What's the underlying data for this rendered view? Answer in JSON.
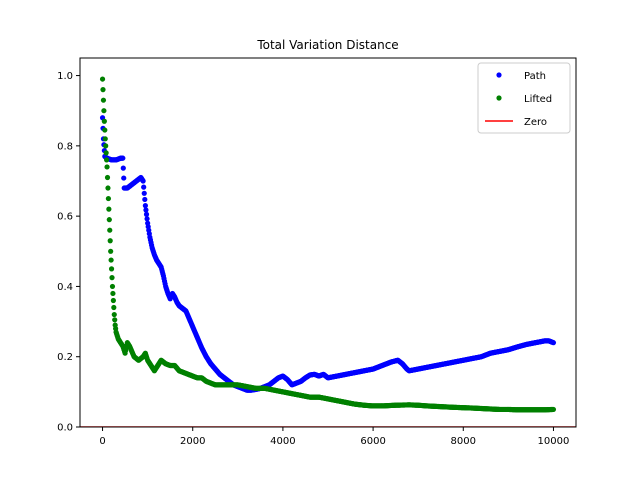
{
  "chart_data": {
    "type": "scatter",
    "title": "Total Variation Distance",
    "xlabel": "",
    "ylabel": "",
    "xlim": [
      -500,
      10500
    ],
    "ylim": [
      0.0,
      1.05
    ],
    "xticks": [
      0,
      2000,
      4000,
      6000,
      8000,
      10000
    ],
    "yticks": [
      0.0,
      0.2,
      0.4,
      0.6,
      0.8,
      1.0
    ],
    "xtick_labels": [
      "0",
      "2000",
      "4000",
      "6000",
      "8000",
      "10000"
    ],
    "ytick_labels": [
      "0.0",
      "0.2",
      "0.4",
      "0.6",
      "0.8",
      "1.0"
    ],
    "grid": false,
    "legend_position": "top-right",
    "series": [
      {
        "name": "Path",
        "kind": "markers",
        "color": "#0000ff",
        "points": [
          [
            0,
            0.88
          ],
          [
            20,
            0.82
          ],
          [
            50,
            0.77
          ],
          [
            100,
            0.765
          ],
          [
            200,
            0.76
          ],
          [
            300,
            0.76
          ],
          [
            400,
            0.765
          ],
          [
            450,
            0.765
          ],
          [
            480,
            0.68
          ],
          [
            550,
            0.68
          ],
          [
            650,
            0.69
          ],
          [
            750,
            0.7
          ],
          [
            850,
            0.71
          ],
          [
            900,
            0.7
          ],
          [
            950,
            0.63
          ],
          [
            1000,
            0.58
          ],
          [
            1050,
            0.54
          ],
          [
            1100,
            0.51
          ],
          [
            1150,
            0.49
          ],
          [
            1200,
            0.475
          ],
          [
            1250,
            0.465
          ],
          [
            1300,
            0.455
          ],
          [
            1350,
            0.43
          ],
          [
            1400,
            0.4
          ],
          [
            1450,
            0.38
          ],
          [
            1500,
            0.365
          ],
          [
            1550,
            0.38
          ],
          [
            1600,
            0.37
          ],
          [
            1650,
            0.355
          ],
          [
            1700,
            0.345
          ],
          [
            1800,
            0.335
          ],
          [
            1850,
            0.33
          ],
          [
            1900,
            0.315
          ],
          [
            2000,
            0.285
          ],
          [
            2100,
            0.255
          ],
          [
            2200,
            0.225
          ],
          [
            2300,
            0.2
          ],
          [
            2400,
            0.18
          ],
          [
            2500,
            0.165
          ],
          [
            2600,
            0.15
          ],
          [
            2700,
            0.14
          ],
          [
            2800,
            0.13
          ],
          [
            2900,
            0.12
          ],
          [
            3000,
            0.115
          ],
          [
            3100,
            0.11
          ],
          [
            3200,
            0.105
          ],
          [
            3300,
            0.105
          ],
          [
            3400,
            0.107
          ],
          [
            3500,
            0.11
          ],
          [
            3600,
            0.115
          ],
          [
            3700,
            0.12
          ],
          [
            3800,
            0.13
          ],
          [
            3900,
            0.14
          ],
          [
            4000,
            0.145
          ],
          [
            4100,
            0.135
          ],
          [
            4200,
            0.12
          ],
          [
            4300,
            0.125
          ],
          [
            4400,
            0.13
          ],
          [
            4500,
            0.14
          ],
          [
            4600,
            0.148
          ],
          [
            4700,
            0.15
          ],
          [
            4800,
            0.145
          ],
          [
            4900,
            0.15
          ],
          [
            5000,
            0.14
          ],
          [
            5200,
            0.145
          ],
          [
            5400,
            0.15
          ],
          [
            5600,
            0.155
          ],
          [
            5800,
            0.16
          ],
          [
            6000,
            0.165
          ],
          [
            6200,
            0.175
          ],
          [
            6400,
            0.185
          ],
          [
            6550,
            0.19
          ],
          [
            6650,
            0.18
          ],
          [
            6750,
            0.165
          ],
          [
            6800,
            0.16
          ],
          [
            7000,
            0.165
          ],
          [
            7200,
            0.17
          ],
          [
            7400,
            0.175
          ],
          [
            7600,
            0.18
          ],
          [
            7800,
            0.185
          ],
          [
            8000,
            0.19
          ],
          [
            8200,
            0.195
          ],
          [
            8400,
            0.2
          ],
          [
            8600,
            0.21
          ],
          [
            8800,
            0.215
          ],
          [
            9000,
            0.22
          ],
          [
            9200,
            0.228
          ],
          [
            9400,
            0.235
          ],
          [
            9600,
            0.24
          ],
          [
            9800,
            0.245
          ],
          [
            9900,
            0.245
          ],
          [
            10000,
            0.24
          ]
        ]
      },
      {
        "name": "Lifted",
        "kind": "markers",
        "color": "#008000",
        "points": [
          [
            0,
            0.99
          ],
          [
            20,
            0.93
          ],
          [
            40,
            0.87
          ],
          [
            60,
            0.82
          ],
          [
            80,
            0.78
          ],
          [
            100,
            0.74
          ],
          [
            120,
            0.68
          ],
          [
            140,
            0.62
          ],
          [
            160,
            0.56
          ],
          [
            180,
            0.5
          ],
          [
            200,
            0.45
          ],
          [
            220,
            0.4
          ],
          [
            240,
            0.36
          ],
          [
            260,
            0.32
          ],
          [
            280,
            0.29
          ],
          [
            300,
            0.27
          ],
          [
            350,
            0.25
          ],
          [
            400,
            0.24
          ],
          [
            450,
            0.23
          ],
          [
            500,
            0.21
          ],
          [
            550,
            0.24
          ],
          [
            600,
            0.23
          ],
          [
            700,
            0.2
          ],
          [
            800,
            0.19
          ],
          [
            900,
            0.2
          ],
          [
            950,
            0.21
          ],
          [
            1000,
            0.19
          ],
          [
            1100,
            0.17
          ],
          [
            1150,
            0.16
          ],
          [
            1200,
            0.17
          ],
          [
            1300,
            0.19
          ],
          [
            1400,
            0.18
          ],
          [
            1500,
            0.175
          ],
          [
            1600,
            0.175
          ],
          [
            1700,
            0.16
          ],
          [
            1800,
            0.155
          ],
          [
            1900,
            0.15
          ],
          [
            2000,
            0.145
          ],
          [
            2100,
            0.14
          ],
          [
            2200,
            0.14
          ],
          [
            2300,
            0.13
          ],
          [
            2400,
            0.125
          ],
          [
            2500,
            0.12
          ],
          [
            2600,
            0.12
          ],
          [
            2800,
            0.12
          ],
          [
            3000,
            0.12
          ],
          [
            3200,
            0.115
          ],
          [
            3400,
            0.11
          ],
          [
            3600,
            0.11
          ],
          [
            3800,
            0.105
          ],
          [
            4000,
            0.1
          ],
          [
            4200,
            0.095
          ],
          [
            4400,
            0.09
          ],
          [
            4600,
            0.085
          ],
          [
            4800,
            0.085
          ],
          [
            5000,
            0.08
          ],
          [
            5200,
            0.075
          ],
          [
            5400,
            0.07
          ],
          [
            5600,
            0.065
          ],
          [
            5800,
            0.062
          ],
          [
            6000,
            0.06
          ],
          [
            6200,
            0.06
          ],
          [
            6500,
            0.062
          ],
          [
            6800,
            0.063
          ],
          [
            7000,
            0.062
          ],
          [
            7200,
            0.06
          ],
          [
            7500,
            0.058
          ],
          [
            7800,
            0.056
          ],
          [
            8000,
            0.055
          ],
          [
            8200,
            0.054
          ],
          [
            8500,
            0.052
          ],
          [
            8800,
            0.05
          ],
          [
            9000,
            0.05
          ],
          [
            9200,
            0.049
          ],
          [
            9500,
            0.049
          ],
          [
            9800,
            0.049
          ],
          [
            10000,
            0.05
          ]
        ]
      },
      {
        "name": "Zero",
        "kind": "line",
        "color": "#ff0000",
        "points": [
          [
            -500,
            0.0
          ],
          [
            10500,
            0.0
          ]
        ]
      }
    ]
  }
}
